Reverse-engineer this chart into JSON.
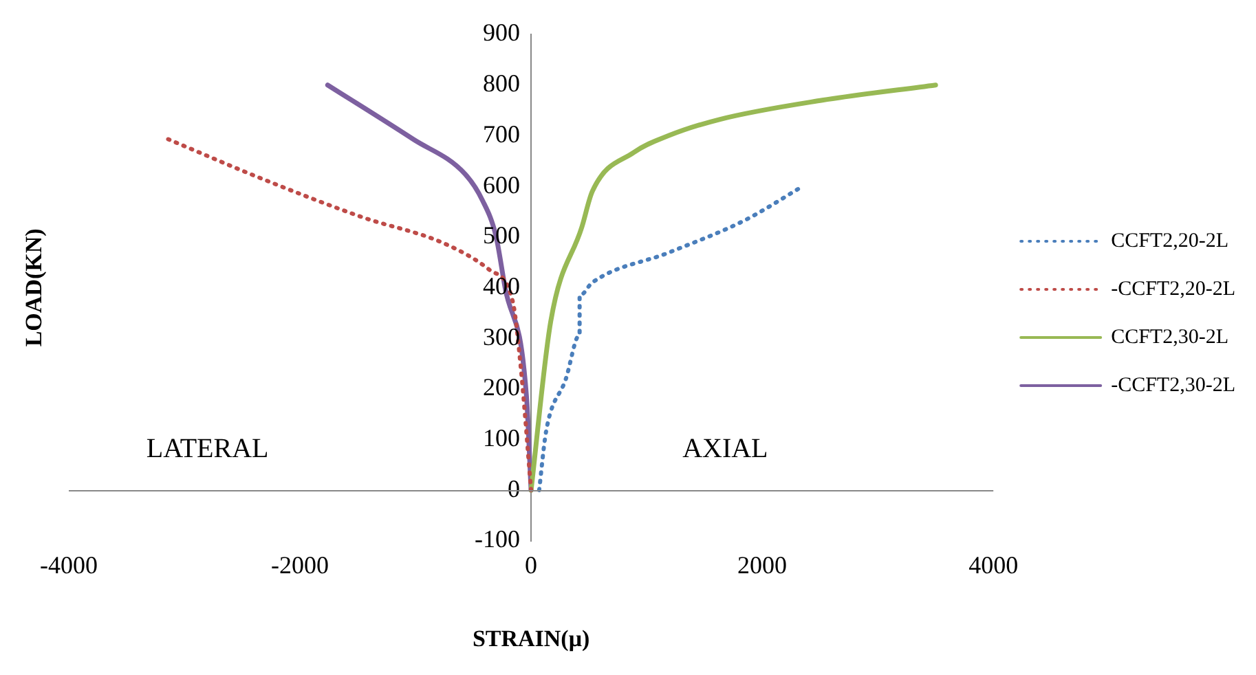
{
  "chart_data": {
    "type": "line",
    "xlabel": "STRAIN(μ)",
    "ylabel": "LOAD(KN)",
    "xlim": [
      -4000,
      4000
    ],
    "xticks": [
      -4000,
      -2000,
      0,
      2000,
      4000
    ],
    "ylim": [
      -100,
      900
    ],
    "yticks": [
      -100,
      0,
      100,
      200,
      300,
      400,
      500,
      600,
      700,
      800,
      900
    ],
    "grid": false,
    "legend": "right",
    "marker": "none",
    "annotations": [
      "LATERAL",
      "AXIAL"
    ],
    "series": [
      {
        "name": "CCFT2,20-2L",
        "color": "#4a7ebb",
        "line_style": "dotted",
        "x": [
          70,
          130,
          300,
          420,
          420,
          530,
          1190,
          1850,
          2350
        ],
        "values": [
          0,
          116,
          219,
          307,
          384,
          410,
          469,
          533,
          600
        ]
      },
      {
        "name": "-CCFT2,20-2L",
        "color": "#be4b48",
        "line_style": "dotted",
        "x": [
          0,
          -90,
          -160,
          -360,
          -750,
          -1460,
          -2340,
          -3140
        ],
        "values": [
          0,
          245,
          374,
          435,
          487,
          539,
          616,
          693
        ]
      },
      {
        "name": "CCFT2,30-2L",
        "color": "#98b954",
        "line_style": "solid",
        "x": [
          0,
          170,
          440,
          530,
          890,
          1190,
          1630,
          2520,
          3500
        ],
        "values": [
          0,
          333,
          520,
          590,
          667,
          700,
          732,
          770,
          800
        ]
      },
      {
        "name": "-CCFT2,30-2L",
        "color": "#7d60a0",
        "line_style": "solid",
        "x": [
          0,
          -40,
          -225,
          -305,
          -420,
          -570,
          -1020,
          -1760
        ],
        "values": [
          0,
          186,
          400,
          503,
          572,
          624,
          693,
          800
        ]
      }
    ]
  }
}
